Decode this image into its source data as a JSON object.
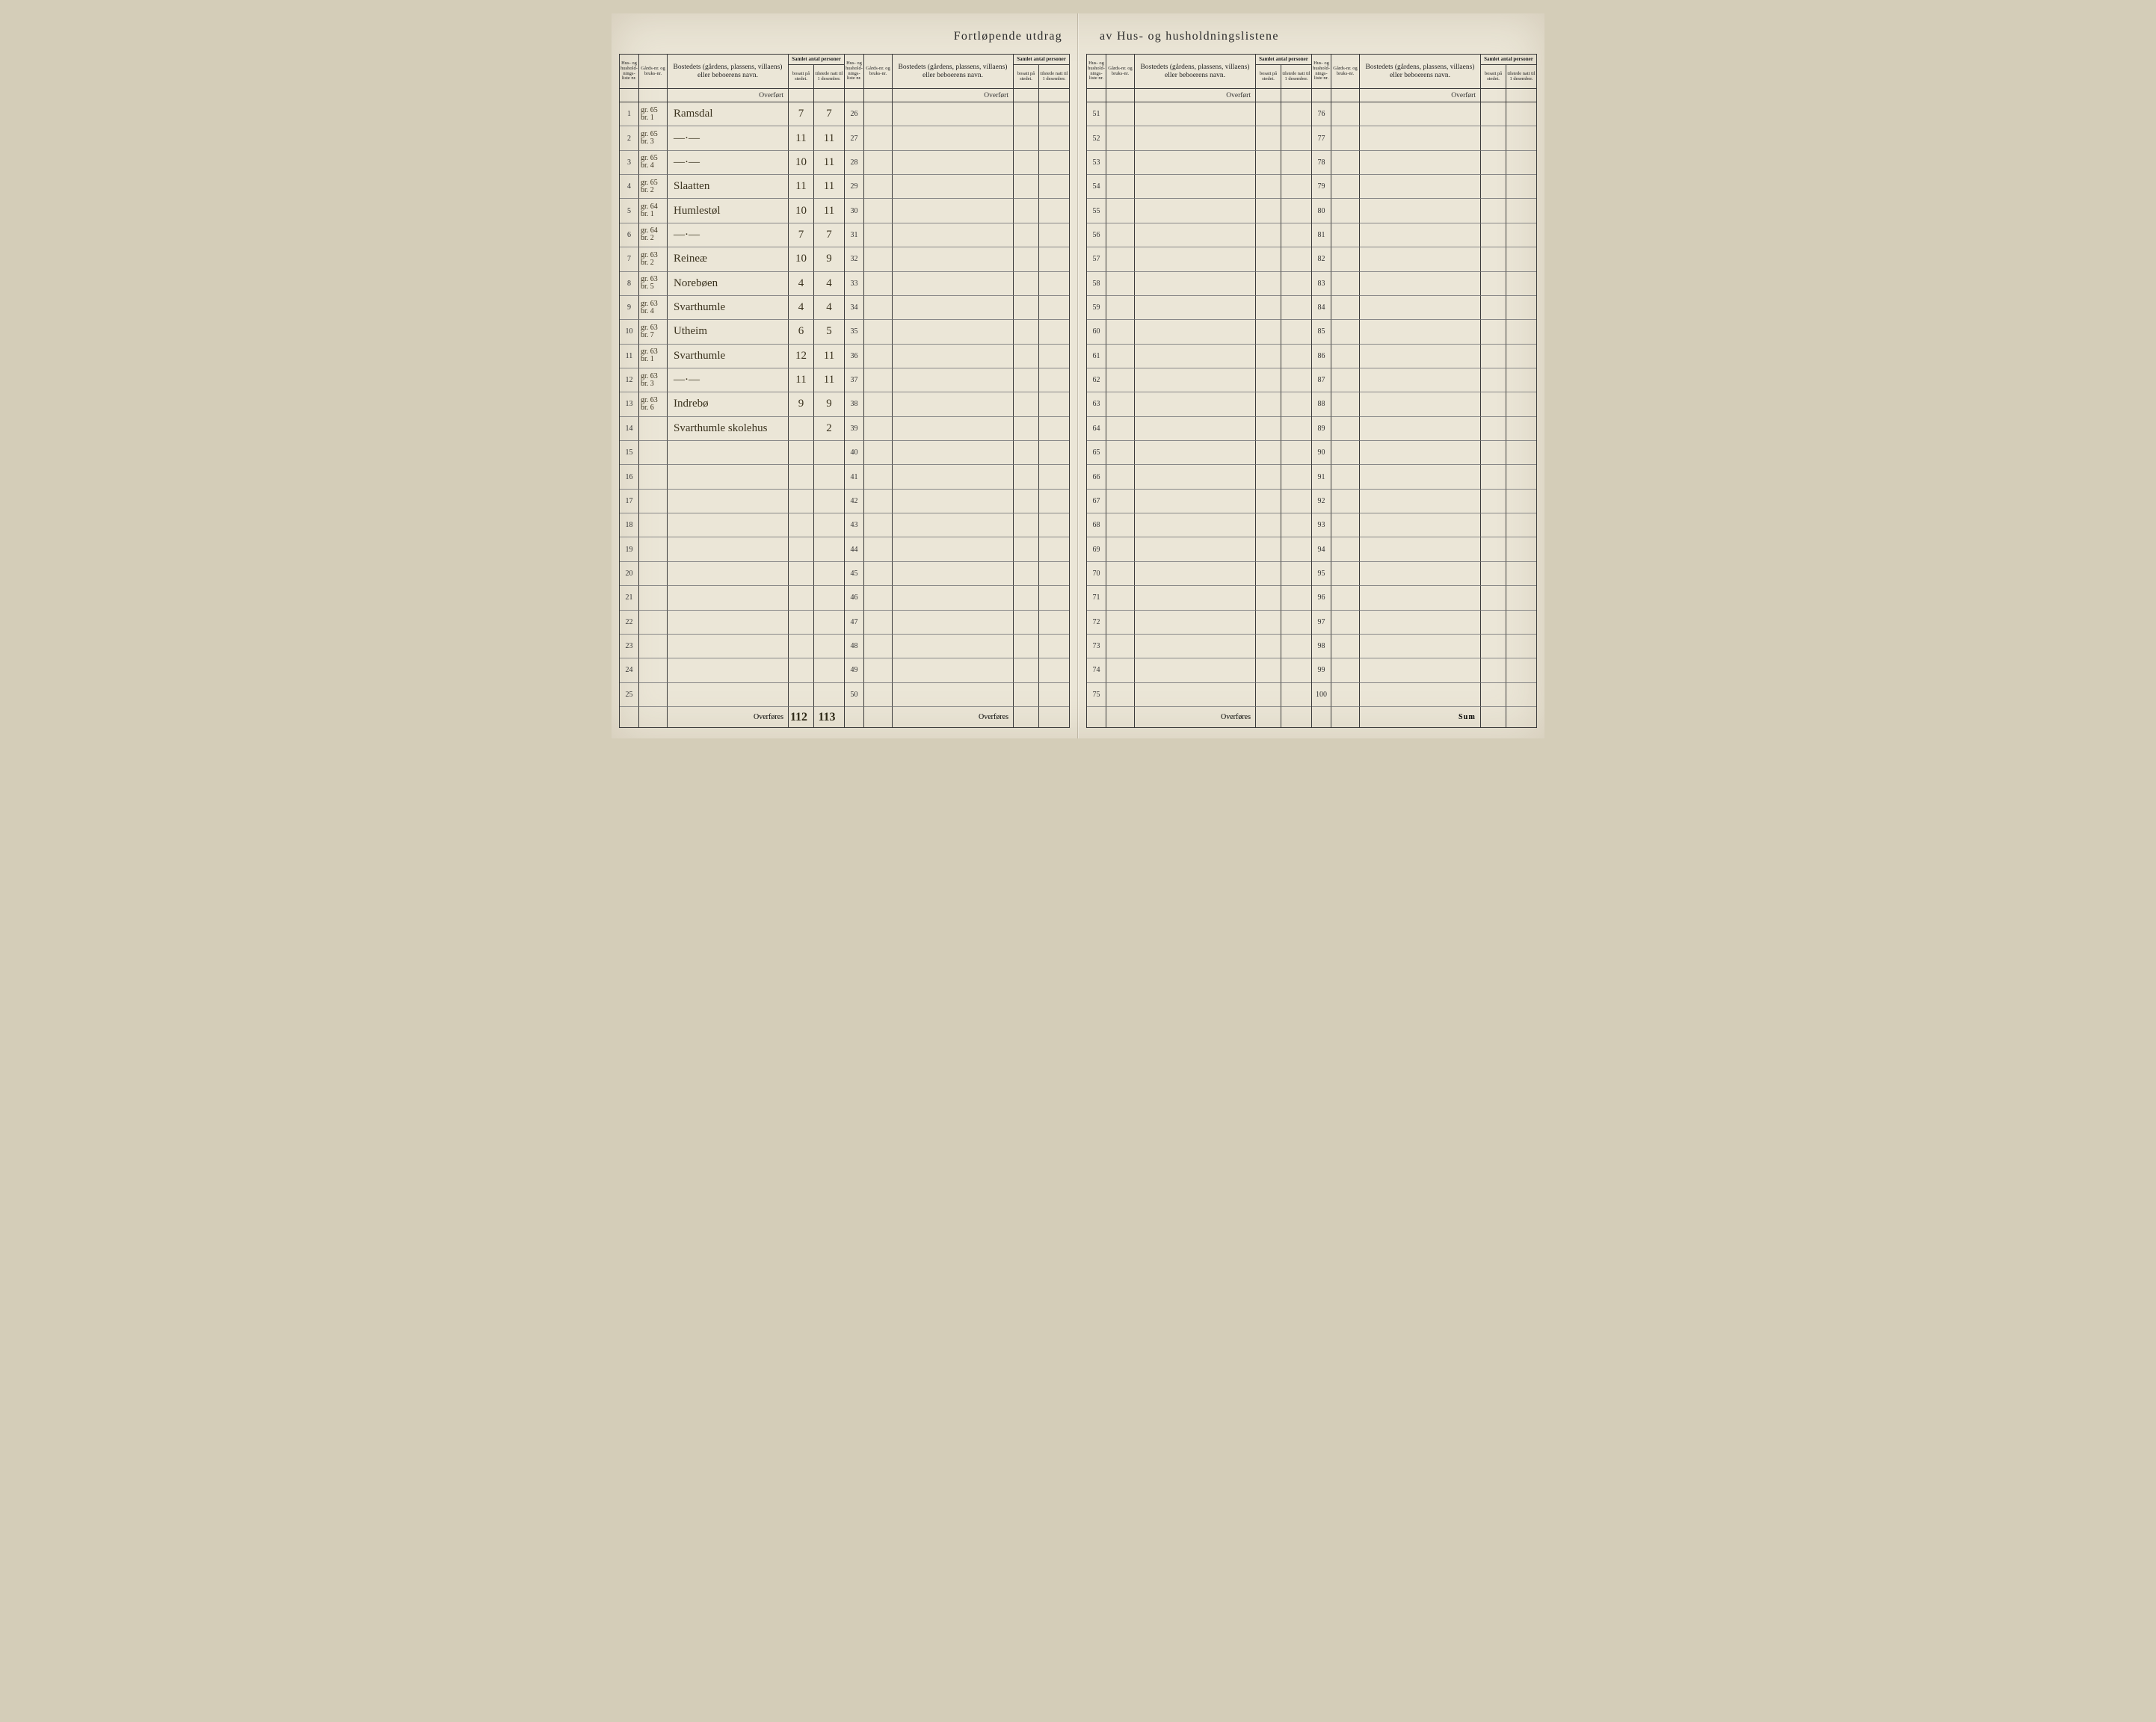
{
  "title_left": "Fortløpende utdrag",
  "title_right": "av Hus- og husholdningslistene",
  "colors": {
    "paper": "#ebe6d7",
    "ink": "#2b2b2b",
    "rule": "#3a3a3a",
    "hand_ink": "#3a321e"
  },
  "header": {
    "liste": "Hus- og hushold-nings-liste nr.",
    "gaard": "Gårds-nr. og bruks-nr.",
    "navn": "Bostedets (gårdens, plassens, villaens) eller beboerens navn.",
    "samlet": "Samlet antal personer",
    "bosatt": "bosatt på stedet.",
    "tilstede": "tilstede natt til 1 desember."
  },
  "overfort_label": "Overført",
  "overfores_label": "Overføres",
  "sum_label": "Sum",
  "sections": [
    {
      "start": 1,
      "end": 25,
      "footer": {
        "label": "Overføres",
        "bosatt": "112",
        "tilstede": "113"
      },
      "rows": [
        {
          "n": 1,
          "gaard": "gr. 65",
          "bruk": "br. 1",
          "navn": "Ramsdal",
          "bosatt": "7",
          "tilstede": "7"
        },
        {
          "n": 2,
          "gaard": "gr. 65",
          "bruk": "br. 3",
          "navn": "—·—",
          "bosatt": "11",
          "tilstede": "11"
        },
        {
          "n": 3,
          "gaard": "gr. 65",
          "bruk": "br. 4",
          "navn": "—·—",
          "bosatt": "10",
          "tilstede": "11"
        },
        {
          "n": 4,
          "gaard": "gr. 65",
          "bruk": "br. 2",
          "navn": "Slaatten",
          "bosatt": "11",
          "tilstede": "11"
        },
        {
          "n": 5,
          "gaard": "gr. 64",
          "bruk": "br. 1",
          "navn": "Humlestøl",
          "bosatt": "10",
          "tilstede": "11"
        },
        {
          "n": 6,
          "gaard": "gr. 64",
          "bruk": "br. 2",
          "navn": "—·—",
          "bosatt": "7",
          "tilstede": "7"
        },
        {
          "n": 7,
          "gaard": "gr. 63",
          "bruk": "br. 2",
          "navn": "Reineæ",
          "bosatt": "10",
          "tilstede": "9"
        },
        {
          "n": 8,
          "gaard": "gr. 63",
          "bruk": "br. 5",
          "navn": "Norebøen",
          "bosatt": "4",
          "tilstede": "4"
        },
        {
          "n": 9,
          "gaard": "gr. 63",
          "bruk": "br. 4",
          "navn": "Svarthumle",
          "bosatt": "4",
          "tilstede": "4"
        },
        {
          "n": 10,
          "gaard": "gr. 63",
          "bruk": "br. 7",
          "navn": "Utheim",
          "bosatt": "6",
          "tilstede": "5"
        },
        {
          "n": 11,
          "gaard": "gr. 63",
          "bruk": "br. 1",
          "navn": "Svarthumle",
          "bosatt": "12",
          "tilstede": "11"
        },
        {
          "n": 12,
          "gaard": "gr. 63",
          "bruk": "br. 3",
          "navn": "—·—",
          "bosatt": "11",
          "tilstede": "11"
        },
        {
          "n": 13,
          "gaard": "gr. 63",
          "bruk": "br. 6",
          "navn": "Indrebø",
          "bosatt": "9",
          "tilstede": "9"
        },
        {
          "n": 14,
          "gaard": "",
          "bruk": "",
          "navn": "Svarthumle skolehus",
          "bosatt": "",
          "tilstede": "2"
        },
        {
          "n": 15
        },
        {
          "n": 16
        },
        {
          "n": 17
        },
        {
          "n": 18
        },
        {
          "n": 19
        },
        {
          "n": 20
        },
        {
          "n": 21
        },
        {
          "n": 22
        },
        {
          "n": 23
        },
        {
          "n": 24
        },
        {
          "n": 25
        }
      ]
    },
    {
      "start": 26,
      "end": 50,
      "footer": {
        "label": "Overføres"
      },
      "rows": [
        {
          "n": 26
        },
        {
          "n": 27
        },
        {
          "n": 28
        },
        {
          "n": 29
        },
        {
          "n": 30
        },
        {
          "n": 31
        },
        {
          "n": 32
        },
        {
          "n": 33
        },
        {
          "n": 34
        },
        {
          "n": 35
        },
        {
          "n": 36
        },
        {
          "n": 37
        },
        {
          "n": 38
        },
        {
          "n": 39
        },
        {
          "n": 40
        },
        {
          "n": 41
        },
        {
          "n": 42
        },
        {
          "n": 43
        },
        {
          "n": 44
        },
        {
          "n": 45
        },
        {
          "n": 46
        },
        {
          "n": 47
        },
        {
          "n": 48
        },
        {
          "n": 49
        },
        {
          "n": 50
        }
      ]
    },
    {
      "start": 51,
      "end": 75,
      "footer": {
        "label": "Overføres"
      },
      "rows": [
        {
          "n": 51
        },
        {
          "n": 52
        },
        {
          "n": 53
        },
        {
          "n": 54
        },
        {
          "n": 55
        },
        {
          "n": 56
        },
        {
          "n": 57
        },
        {
          "n": 58
        },
        {
          "n": 59
        },
        {
          "n": 60
        },
        {
          "n": 61
        },
        {
          "n": 62
        },
        {
          "n": 63
        },
        {
          "n": 64
        },
        {
          "n": 65
        },
        {
          "n": 66
        },
        {
          "n": 67
        },
        {
          "n": 68
        },
        {
          "n": 69
        },
        {
          "n": 70
        },
        {
          "n": 71
        },
        {
          "n": 72
        },
        {
          "n": 73
        },
        {
          "n": 74
        },
        {
          "n": 75
        }
      ]
    },
    {
      "start": 76,
      "end": 100,
      "footer": {
        "label": "Sum"
      },
      "rows": [
        {
          "n": 76
        },
        {
          "n": 77
        },
        {
          "n": 78
        },
        {
          "n": 79
        },
        {
          "n": 80
        },
        {
          "n": 81
        },
        {
          "n": 82
        },
        {
          "n": 83
        },
        {
          "n": 84
        },
        {
          "n": 85
        },
        {
          "n": 86
        },
        {
          "n": 87
        },
        {
          "n": 88
        },
        {
          "n": 89
        },
        {
          "n": 90
        },
        {
          "n": 91
        },
        {
          "n": 92
        },
        {
          "n": 93
        },
        {
          "n": 94
        },
        {
          "n": 95
        },
        {
          "n": 96
        },
        {
          "n": 97
        },
        {
          "n": 98
        },
        {
          "n": 99
        },
        {
          "n": 100
        }
      ]
    }
  ]
}
